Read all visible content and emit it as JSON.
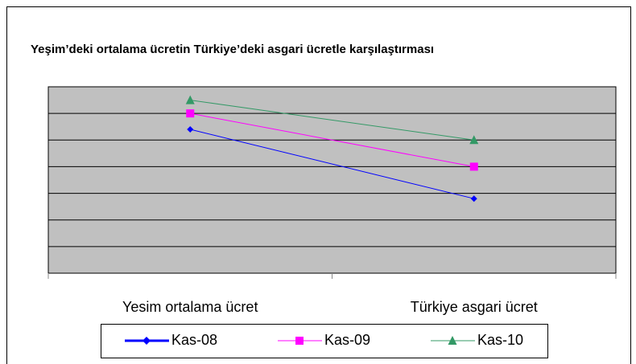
{
  "chart_data": {
    "type": "line",
    "title": "Yeşim’deki ortalama ücretin Türkiye’deki asgari ücretle karşılaştırması",
    "categories": [
      "Yesim ortalama ücret",
      "Türkiye asgari ücret"
    ],
    "series": [
      {
        "name": "Kas-08",
        "color": "#0000ff",
        "marker": "diamond",
        "values": [
          5.4,
          2.8
        ]
      },
      {
        "name": "Kas-09",
        "color": "#ff00ff",
        "marker": "square",
        "values": [
          6,
          4
        ]
      },
      {
        "name": "Kas-10",
        "color": "#339966",
        "marker": "triangle",
        "values": [
          6.5,
          5
        ]
      }
    ],
    "ylim": [
      0,
      7
    ],
    "yticks": [
      0,
      1,
      2,
      3,
      4,
      5,
      6,
      7
    ],
    "grid": true
  }
}
